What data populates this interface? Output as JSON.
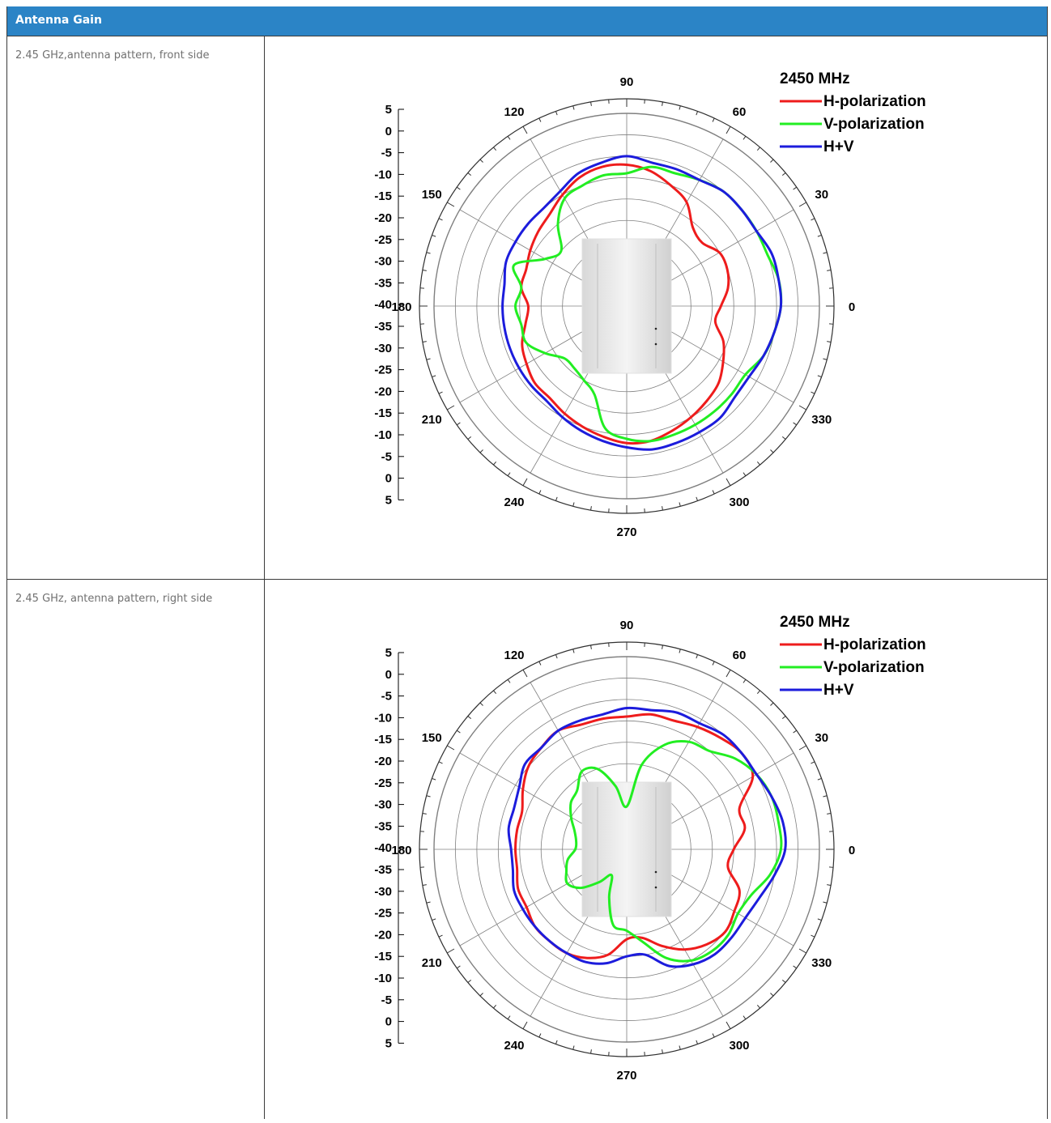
{
  "header": {
    "title": "Antenna Gain"
  },
  "rows": [
    {
      "label": "2.45 GHz,antenna pattern, front side"
    },
    {
      "label": "2.45 GHz, antenna pattern, right side"
    }
  ],
  "chart_data": [
    {
      "type": "polar",
      "title": "2450 MHz",
      "angle_ticks": [
        "0",
        "30",
        "60",
        "90",
        "120",
        "150",
        "180",
        "210",
        "240",
        "270",
        "300",
        "330"
      ],
      "radial_ticks": [
        "5",
        "0",
        "-5",
        "-10",
        "-15",
        "-20",
        "-25",
        "-30",
        "-35",
        "-40",
        "-35",
        "-30",
        "-25",
        "-20",
        "-15",
        "-10",
        "-5",
        "0",
        "5"
      ],
      "rlim": [
        -40,
        5
      ],
      "series": [
        {
          "name": "H-polarization",
          "color": "#ee1c1c",
          "angles": [
            0,
            10,
            20,
            30,
            40,
            50,
            60,
            70,
            80,
            90,
            100,
            110,
            120,
            130,
            140,
            150,
            160,
            170,
            180,
            190,
            200,
            210,
            220,
            230,
            240,
            250,
            260,
            270,
            280,
            290,
            300,
            310,
            320,
            330,
            340,
            350
          ],
          "values": [
            -18,
            -16,
            -15,
            -15,
            -17,
            -16,
            -12,
            -10,
            -8,
            -7,
            -7,
            -8,
            -10,
            -12,
            -13,
            -14,
            -15,
            -15,
            -17,
            -16,
            -14,
            -13,
            -12,
            -12,
            -11,
            -10,
            -9,
            -8,
            -8,
            -9,
            -10,
            -11,
            -12,
            -14,
            -16,
            -19
          ]
        },
        {
          "name": "V-polarization",
          "color": "#22ee22",
          "angles": [
            0,
            10,
            20,
            30,
            40,
            50,
            60,
            70,
            80,
            90,
            100,
            110,
            120,
            130,
            140,
            150,
            160,
            170,
            180,
            190,
            200,
            210,
            220,
            230,
            240,
            250,
            260,
            270,
            280,
            290,
            300,
            310,
            320,
            330,
            340,
            350
          ],
          "values": [
            -4,
            -4,
            -5,
            -5,
            -5,
            -5,
            -6,
            -7,
            -7,
            -9,
            -9,
            -10,
            -11,
            -15,
            -20,
            -18,
            -12,
            -15,
            -14,
            -15,
            -15,
            -18,
            -21,
            -21,
            -20,
            -18,
            -11,
            -9,
            -8,
            -8,
            -8,
            -8,
            -8,
            -8,
            -6,
            -5
          ]
        },
        {
          "name": "H+V",
          "color": "#1c1cdc",
          "angles": [
            0,
            10,
            20,
            30,
            40,
            50,
            60,
            70,
            80,
            90,
            100,
            110,
            120,
            130,
            140,
            150,
            160,
            170,
            180,
            190,
            200,
            210,
            220,
            230,
            240,
            250,
            260,
            270,
            280,
            290,
            300,
            310,
            320,
            330,
            340,
            350
          ],
          "values": [
            -4,
            -4,
            -4,
            -5,
            -5,
            -5,
            -6,
            -6,
            -6,
            -5,
            -6,
            -7,
            -9,
            -10,
            -10,
            -10,
            -10,
            -11,
            -11,
            -11,
            -11,
            -11,
            -11,
            -11,
            -10,
            -9,
            -8,
            -7,
            -6,
            -6,
            -6,
            -6,
            -7,
            -7,
            -6,
            -5
          ]
        }
      ],
      "legend": "top-right"
    },
    {
      "type": "polar",
      "title": "2450 MHz",
      "angle_ticks": [
        "0",
        "30",
        "60",
        "90",
        "120",
        "150",
        "180",
        "210",
        "240",
        "270",
        "300",
        "330"
      ],
      "radial_ticks": [
        "5",
        "0",
        "-5",
        "-10",
        "-15",
        "-20",
        "-25",
        "-30",
        "-35",
        "-40",
        "-35",
        "-30",
        "-25",
        "-20",
        "-15",
        "-10",
        "-5",
        "0",
        "5"
      ],
      "rlim": [
        -40,
        5
      ],
      "series": [
        {
          "name": "H-polarization",
          "color": "#ee1c1c",
          "angles": [
            0,
            10,
            20,
            30,
            40,
            50,
            60,
            70,
            80,
            90,
            100,
            110,
            120,
            130,
            140,
            150,
            160,
            170,
            180,
            190,
            200,
            210,
            220,
            230,
            240,
            250,
            260,
            270,
            280,
            290,
            300,
            310,
            320,
            330,
            340,
            350
          ],
          "values": [
            -15,
            -12,
            -12,
            -6,
            -5,
            -6,
            -7,
            -8,
            -8,
            -9,
            -9,
            -9,
            -8,
            -9,
            -10,
            -12,
            -14,
            -14,
            -14,
            -14,
            -13,
            -13,
            -12,
            -12,
            -12,
            -13,
            -15,
            -19,
            -19,
            -16,
            -13,
            -11,
            -10,
            -11,
            -12,
            -16
          ]
        },
        {
          "name": "V-polarization",
          "color": "#22ee22",
          "angles": [
            0,
            10,
            20,
            30,
            40,
            50,
            60,
            70,
            80,
            90,
            100,
            110,
            120,
            130,
            140,
            150,
            160,
            170,
            180,
            190,
            200,
            210,
            220,
            230,
            240,
            250,
            260,
            270,
            280,
            290,
            300,
            310,
            320,
            330,
            340,
            350
          ],
          "values": [
            -4,
            -4,
            -4,
            -5,
            -7,
            -10,
            -11,
            -14,
            -20,
            -30,
            -25,
            -20,
            -19,
            -22,
            -23,
            -25,
            -27,
            -28,
            -28,
            -26,
            -25,
            -24,
            -26,
            -30,
            -33,
            -28,
            -22,
            -21,
            -18,
            -13,
            -10,
            -9,
            -9,
            -10,
            -9,
            -6
          ]
        },
        {
          "name": "H+V",
          "color": "#1c1cdc",
          "angles": [
            0,
            10,
            20,
            30,
            40,
            50,
            60,
            70,
            80,
            90,
            100,
            110,
            120,
            130,
            140,
            150,
            160,
            170,
            180,
            190,
            200,
            210,
            220,
            230,
            240,
            250,
            260,
            270,
            280,
            290,
            300,
            310,
            320,
            330,
            340,
            350
          ],
          "values": [
            -3,
            -3,
            -4,
            -5,
            -5,
            -5,
            -6,
            -6,
            -7,
            -7,
            -8,
            -8,
            -8,
            -9,
            -9,
            -11,
            -12,
            -12,
            -13,
            -13,
            -12,
            -12,
            -12,
            -12,
            -12,
            -12,
            -13,
            -15,
            -15,
            -11,
            -9,
            -8,
            -8,
            -8,
            -7,
            -5
          ]
        }
      ],
      "legend": "top-right"
    }
  ]
}
